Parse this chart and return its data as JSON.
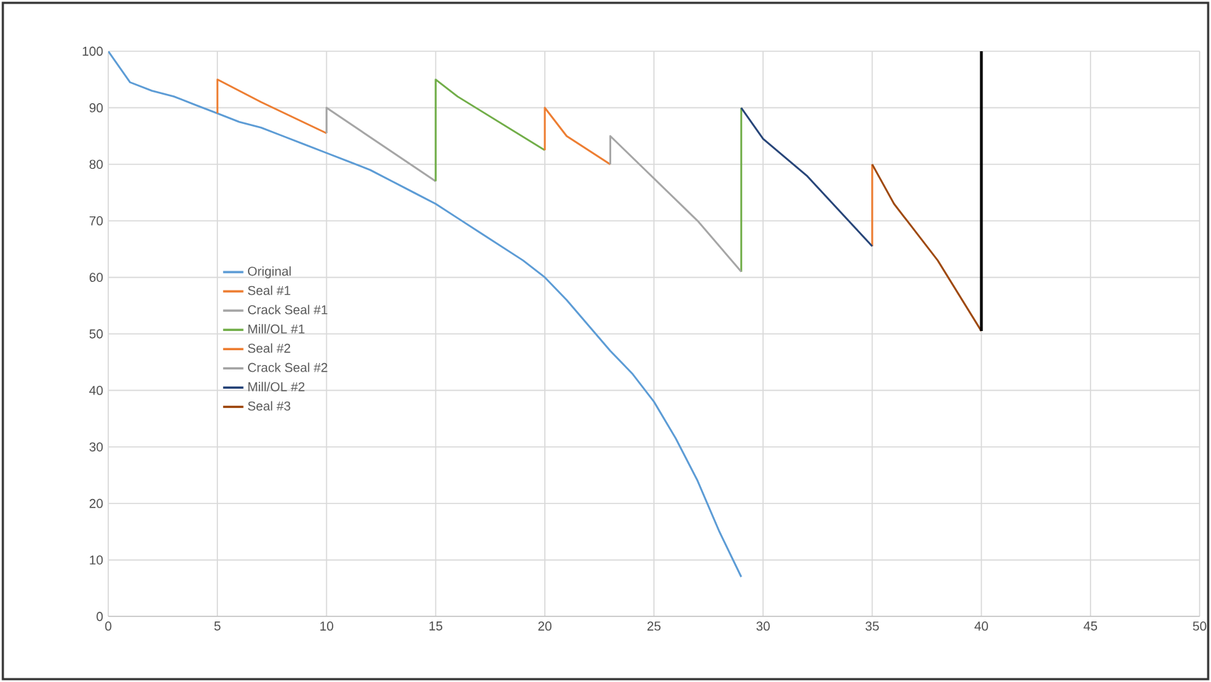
{
  "chart_data": {
    "type": "line",
    "xlim": [
      0,
      50
    ],
    "ylim": [
      0,
      100
    ],
    "xticks": [
      0,
      5,
      10,
      15,
      20,
      25,
      30,
      35,
      40,
      45,
      50
    ],
    "yticks": [
      0,
      10,
      20,
      30,
      40,
      50,
      60,
      70,
      80,
      90,
      100
    ],
    "grid": true,
    "legend": "left",
    "line_style": "solid",
    "marker": "none",
    "series": [
      {
        "name": "Original",
        "color": "#5b9bd5",
        "x": [
          0,
          1,
          2,
          3,
          4,
          5,
          6,
          7,
          8,
          9,
          10,
          11,
          12,
          13,
          14,
          15,
          16,
          17,
          18,
          19,
          20,
          21,
          22,
          23,
          24,
          25,
          26,
          27,
          28,
          29
        ],
        "values": [
          100,
          94.5,
          93,
          92,
          90.5,
          89,
          87.5,
          86.5,
          85,
          83.5,
          82,
          80.5,
          79,
          77,
          75,
          73,
          70.5,
          68,
          65.5,
          63,
          60,
          56,
          51.5,
          47,
          43,
          38,
          31.5,
          24,
          15,
          7
        ]
      },
      {
        "name": "Seal #1",
        "color": "#ed7d31",
        "x": [
          5,
          5,
          7,
          10
        ],
        "values": [
          89,
          95,
          91,
          85.5
        ]
      },
      {
        "name": "Crack Seal #1",
        "color": "#a5a5a5",
        "x": [
          10,
          10,
          15
        ],
        "values": [
          85.5,
          90,
          77
        ]
      },
      {
        "name": "Mill/OL #1",
        "color": "#70ad47",
        "x": [
          15,
          15,
          16,
          20,
          25,
          29,
          29
        ],
        "values": [
          77,
          95,
          92,
          82.5,
          null,
          61,
          90
        ]
      },
      {
        "name": "Seal #2",
        "color": "#ed7d31",
        "x": [
          20,
          20,
          21,
          23,
          29,
          35,
          35
        ],
        "values": [
          82.5,
          90,
          85,
          80,
          null,
          65.5,
          80
        ]
      },
      {
        "name": "Crack Seal #2",
        "color": "#a5a5a5",
        "x": [
          23,
          23,
          27,
          29
        ],
        "values": [
          80,
          85,
          70,
          61
        ]
      },
      {
        "name": "Mill/OL #2",
        "color": "#264478",
        "x": [
          29,
          30,
          32,
          35
        ],
        "values": [
          90,
          84.5,
          78,
          65.5
        ]
      },
      {
        "name": "Seal #3",
        "color": "#9e480e",
        "x": [
          35,
          36,
          38,
          40
        ],
        "values": [
          80,
          73,
          63,
          50.5
        ]
      },
      {
        "color": "#000000",
        "x": [
          40,
          40
        ],
        "values": [
          50.5,
          100
        ]
      }
    ]
  }
}
